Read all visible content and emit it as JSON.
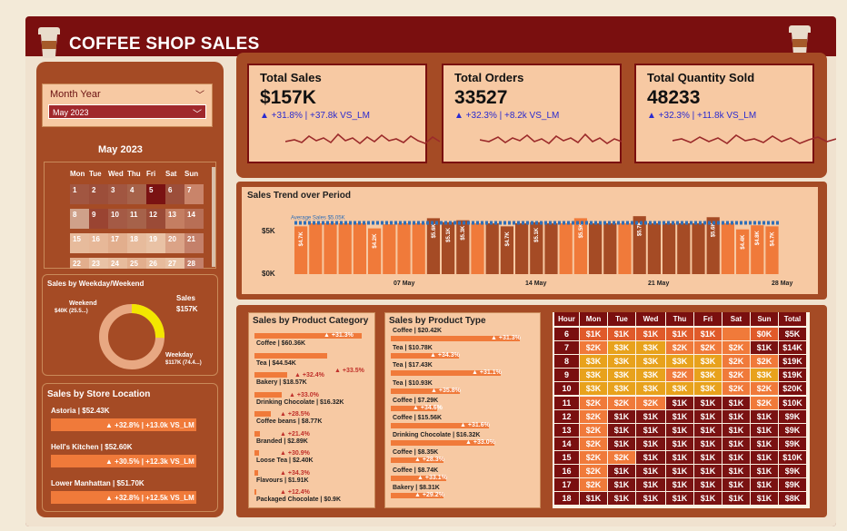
{
  "header": {
    "title": "COFFEE SHOP SALES"
  },
  "kpis": [
    {
      "title": "Total Sales",
      "value": "$157K",
      "delta": "▲ +31.8% | +37.8k VS_LM"
    },
    {
      "title": "Total Orders",
      "value": "33527",
      "delta": "▲ +32.3% | +8.2k VS_LM"
    },
    {
      "title": "Total Quantity Sold",
      "value": "48233",
      "delta": "▲ +32.3% | +11.8k VS_LM"
    }
  ],
  "slicer": {
    "label": "Month Year",
    "selected": "May 2023"
  },
  "calendar": {
    "title": "May 2023",
    "days": [
      "Mon",
      "Tue",
      "Wed",
      "Thu",
      "Fri",
      "Sat",
      "Sun"
    ],
    "dates": [
      "1",
      "2",
      "3",
      "4",
      "5",
      "6",
      "7",
      "8",
      "9",
      "10",
      "11",
      "12",
      "13",
      "14",
      "15",
      "16",
      "17",
      "18",
      "19",
      "20",
      "21",
      "22",
      "23",
      "24",
      "25",
      "26",
      "27",
      "28"
    ]
  },
  "weekday": {
    "title": "Sales by Weekday/Weekend",
    "center_label": "Sales",
    "center_value": "$157K",
    "weekend_label": "Weekend",
    "weekend_value": "$40K (25.5...)",
    "weekday_label": "Weekday",
    "weekday_value": "$117K (74.4...)",
    "weekend_share": 0.255
  },
  "store": {
    "title": "Sales by Store Location",
    "items": [
      {
        "label": "Astoria | $52.43K",
        "delta": "▲ +32.8% | +13.0k VS_LM"
      },
      {
        "label": "Hell's Kitchen | $52.60K",
        "delta": "▲ +30.5% | +12.3k VS_LM"
      },
      {
        "label": "Lower Manhattan | $51.70K",
        "delta": "▲ +32.8% | +12.5k VS_LM"
      }
    ]
  },
  "trend": {
    "title": "Sales Trend over Period",
    "avg_label": "Average Sales $5.05K",
    "y_top": "$5K",
    "y_bottom": "$0K",
    "x_ticks": [
      "07 May",
      "14 May",
      "21 May",
      "28 May"
    ]
  },
  "category": {
    "title": "Sales by Product Category",
    "items": [
      {
        "label": "Coffee | $60.36K",
        "delta": "▲ +31.3%"
      },
      {
        "label": "Tea | $44.54K",
        "delta": "▲ +33.5%"
      },
      {
        "label": "Bakery | $18.57K",
        "delta": "▲ +32.4%"
      },
      {
        "label": "Drinking Chocolate | $16.32K",
        "delta": "▲ +33.0%"
      },
      {
        "label": "Coffee beans | $8.77K",
        "delta": "▲ +28.5%"
      },
      {
        "label": "Branded | $2.89K",
        "delta": "▲ +21.4%"
      },
      {
        "label": "Loose Tea | $2.40K",
        "delta": "▲ +30.9%"
      },
      {
        "label": "Flavours | $1.91K",
        "delta": "▲ +34.3%"
      },
      {
        "label": "Packaged Chocolate | $0.9K",
        "delta": "▲ +12.4%"
      }
    ]
  },
  "ptype": {
    "title": "Sales by Product Type",
    "items": [
      {
        "label": "Coffee | $20.42K",
        "delta": "▲ +31.3%"
      },
      {
        "label": "Tea | $10.78K",
        "delta": "▲ +34.3%"
      },
      {
        "label": "Tea | $17.43K",
        "delta": "▲ +31.1%"
      },
      {
        "label": "Tea | $10.93K",
        "delta": "▲ +35.8%"
      },
      {
        "label": "Coffee | $7.29K",
        "delta": "▲ +34.6%"
      },
      {
        "label": "Coffee | $15.56K",
        "delta": "▲ +31.6%"
      },
      {
        "label": "Drinking Chocolate | $16.32K",
        "delta": "▲ +33.0%"
      },
      {
        "label": "Coffee | $8.35K",
        "delta": "▲ +28.3%"
      },
      {
        "label": "Coffee | $8.74K",
        "delta": "▲ +33.1%"
      },
      {
        "label": "Bakery | $8.31K",
        "delta": "▲ +29.2%"
      }
    ]
  },
  "heatmap": {
    "headers": [
      "Hour",
      "Mon",
      "Tue",
      "Wed",
      "Thu",
      "Fri",
      "Sat",
      "Sun",
      "Total"
    ],
    "rows": [
      [
        "6",
        "$1K",
        "$1K",
        "$1K",
        "$1K",
        "$1K",
        "",
        "$0K",
        "$5K"
      ],
      [
        "7",
        "$2K",
        "$3K",
        "$3K",
        "$2K",
        "$2K",
        "$2K",
        "$1K",
        "$14K"
      ],
      [
        "8",
        "$3K",
        "$3K",
        "$3K",
        "$3K",
        "$3K",
        "$2K",
        "$2K",
        "$19K"
      ],
      [
        "9",
        "$3K",
        "$3K",
        "$3K",
        "$2K",
        "$3K",
        "$2K",
        "$3K",
        "$19K"
      ],
      [
        "10",
        "$3K",
        "$3K",
        "$3K",
        "$3K",
        "$3K",
        "$2K",
        "$2K",
        "$20K"
      ],
      [
        "11",
        "$2K",
        "$2K",
        "$2K",
        "$1K",
        "$1K",
        "$1K",
        "$2K",
        "$10K"
      ],
      [
        "12",
        "$2K",
        "$1K",
        "$1K",
        "$1K",
        "$1K",
        "$1K",
        "$1K",
        "$9K"
      ],
      [
        "13",
        "$2K",
        "$1K",
        "$1K",
        "$1K",
        "$1K",
        "$1K",
        "$1K",
        "$9K"
      ],
      [
        "14",
        "$2K",
        "$1K",
        "$1K",
        "$1K",
        "$1K",
        "$1K",
        "$1K",
        "$9K"
      ],
      [
        "15",
        "$2K",
        "$2K",
        "$1K",
        "$1K",
        "$1K",
        "$1K",
        "$1K",
        "$10K"
      ],
      [
        "16",
        "$2K",
        "$1K",
        "$1K",
        "$1K",
        "$1K",
        "$1K",
        "$1K",
        "$9K"
      ],
      [
        "17",
        "$2K",
        "$1K",
        "$1K",
        "$1K",
        "$1K",
        "$1K",
        "$1K",
        "$9K"
      ],
      [
        "18",
        "$1K",
        "$1K",
        "$1K",
        "$1K",
        "$1K",
        "$1K",
        "$1K",
        "$8K"
      ]
    ]
  }
}
